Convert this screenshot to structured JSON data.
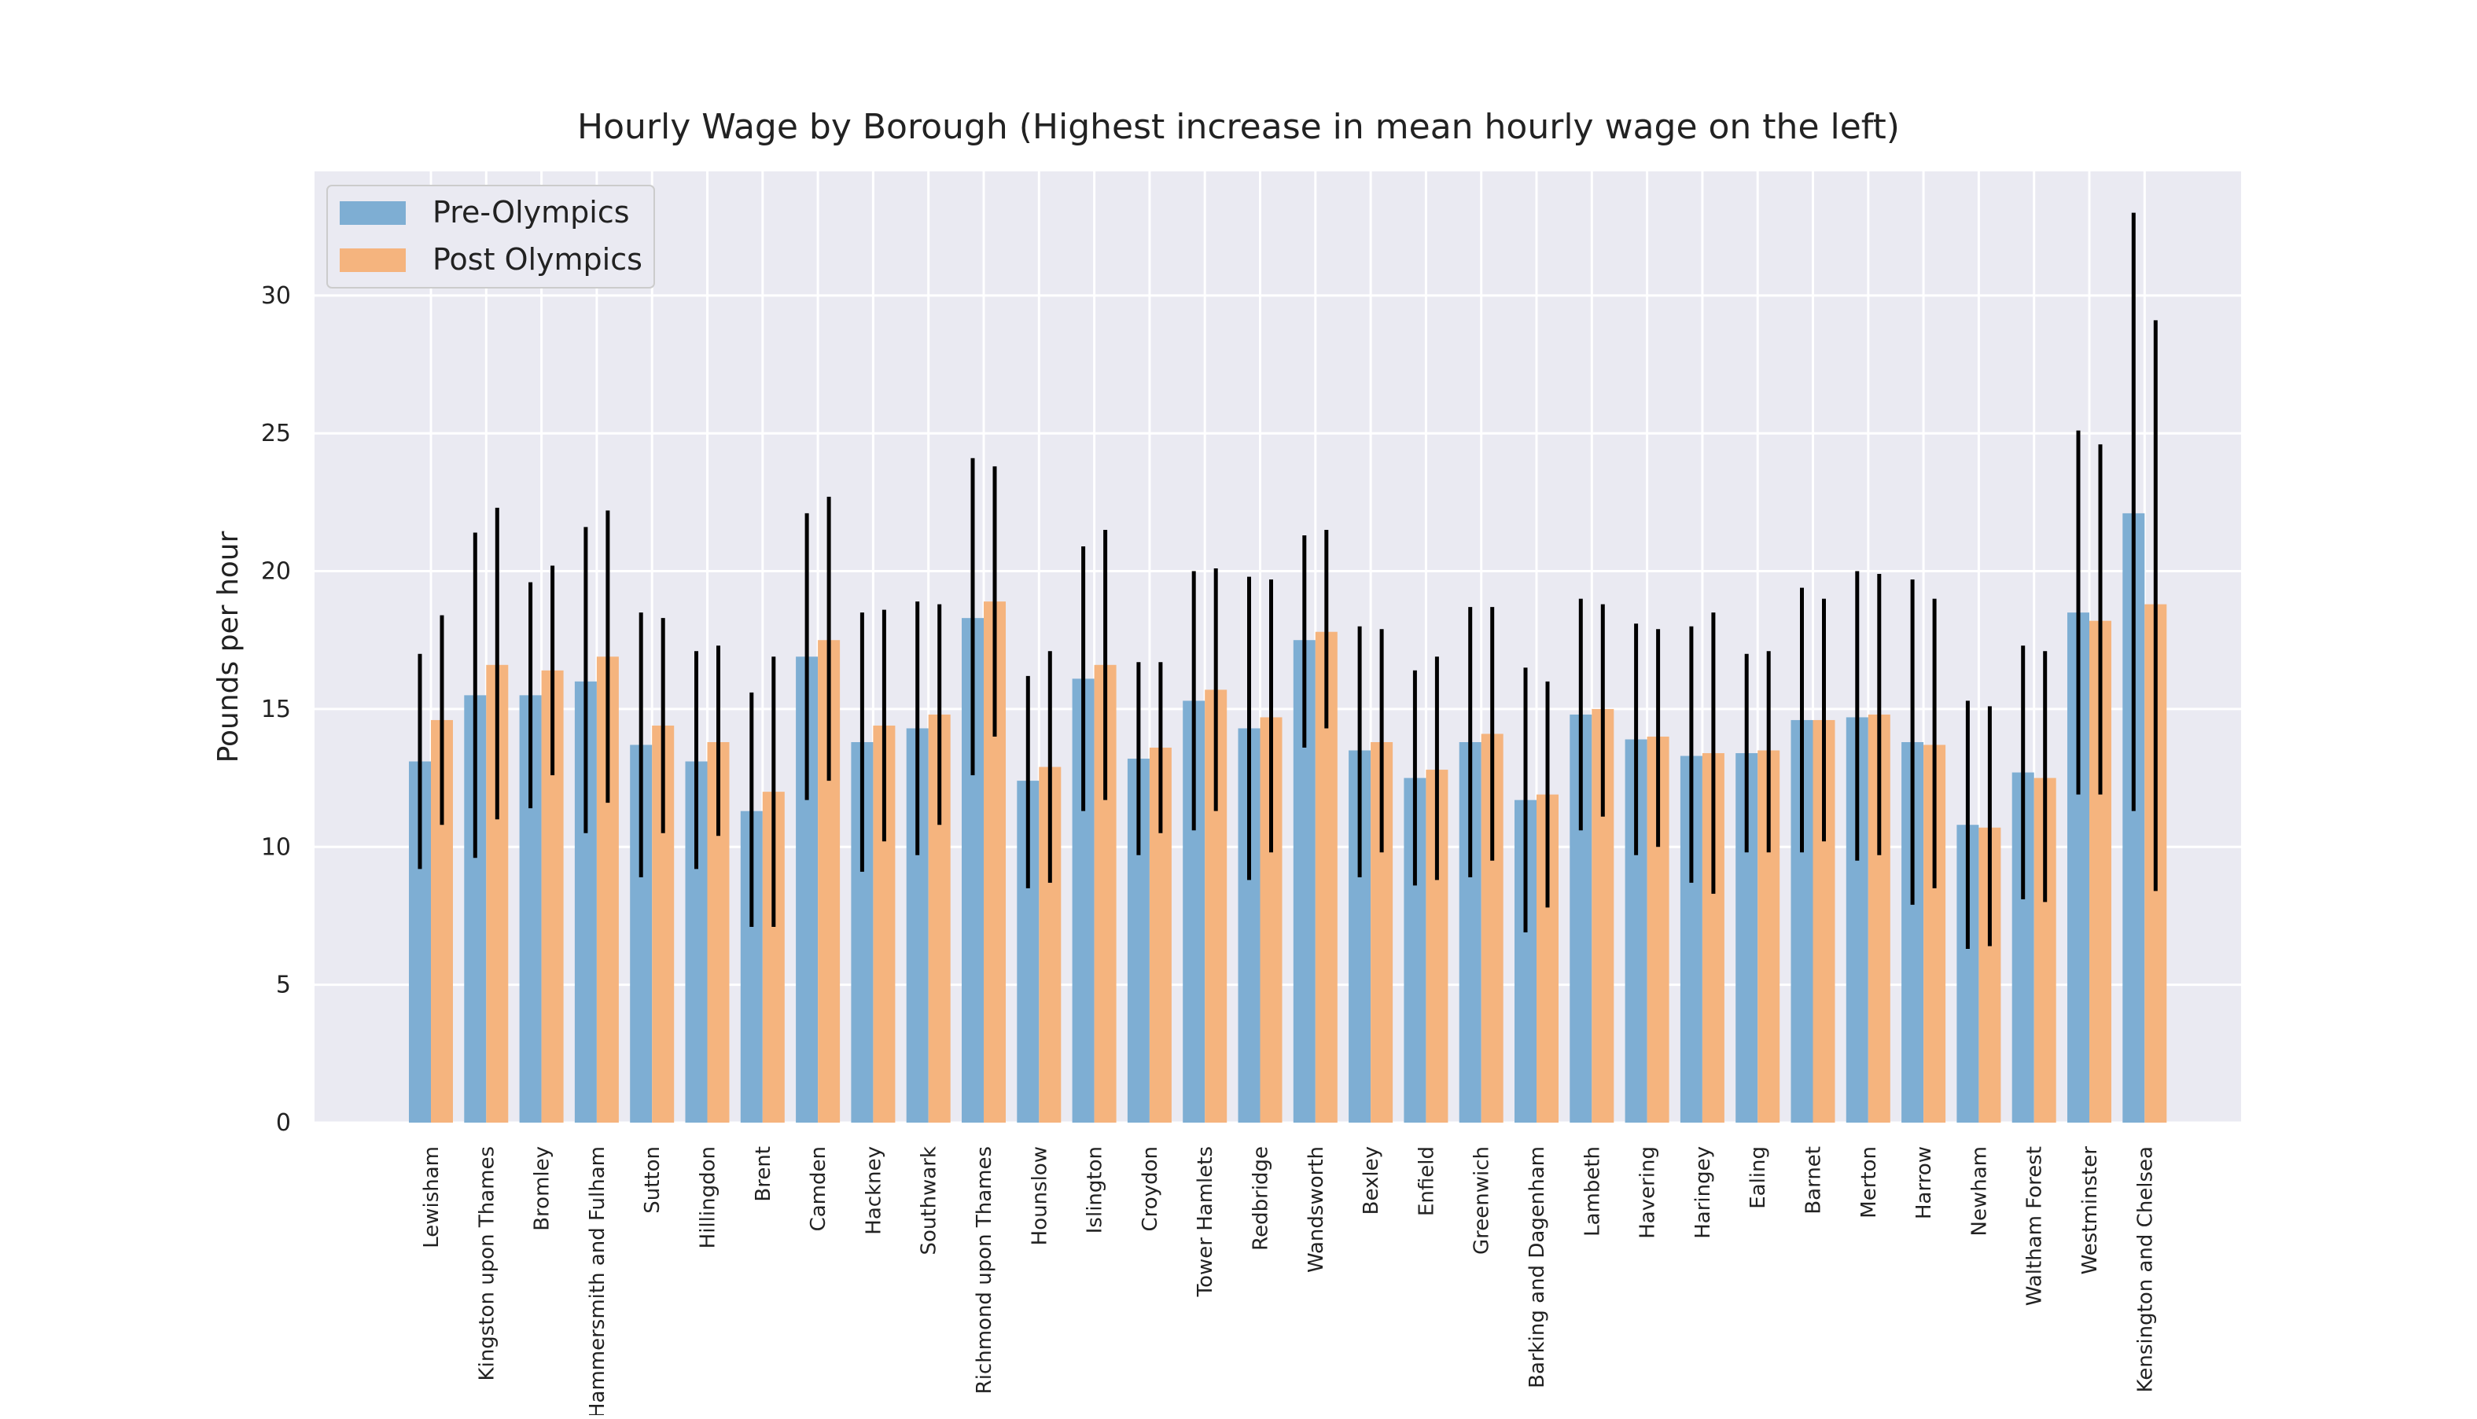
{
  "chart_data": {
    "type": "bar",
    "title": "Hourly Wage by Borough (Highest increase in mean hourly wage on the left)",
    "xlabel": "",
    "ylabel": "Pounds per hour",
    "ylim": [
      0,
      34.5
    ],
    "yticks": [
      0,
      5,
      10,
      15,
      20,
      25,
      30
    ],
    "grid": true,
    "legend_position": "top-left",
    "categories": [
      "Lewisham",
      "Kingston upon Thames",
      "Bromley",
      "Hammersmith and Fulham",
      "Sutton",
      "Hillingdon",
      "Brent",
      "Camden",
      "Hackney",
      "Southwark",
      "Richmond upon Thames",
      "Hounslow",
      "Islington",
      "Croydon",
      "Tower Hamlets",
      "Redbridge",
      "Wandsworth",
      "Bexley",
      "Enfield",
      "Greenwich",
      "Barking and Dagenham",
      "Lambeth",
      "Havering",
      "Haringey",
      "Ealing",
      "Barnet",
      "Merton",
      "Harrow",
      "Newham",
      "Waltham Forest",
      "Westminster",
      "Kensington and Chelsea"
    ],
    "series": [
      {
        "name": "Pre-Olympics",
        "color": "#7eaed3",
        "values": [
          13.1,
          15.5,
          15.5,
          16.0,
          13.7,
          13.1,
          11.3,
          16.9,
          13.8,
          14.3,
          18.3,
          12.4,
          16.1,
          13.2,
          15.3,
          14.3,
          17.5,
          13.5,
          12.5,
          13.8,
          11.7,
          14.8,
          13.9,
          13.3,
          13.4,
          14.6,
          14.7,
          13.8,
          10.8,
          12.7,
          18.5,
          22.1
        ],
        "error_low": [
          9.2,
          9.6,
          11.4,
          10.5,
          8.9,
          9.2,
          7.1,
          11.7,
          9.1,
          9.7,
          12.6,
          8.5,
          11.3,
          9.7,
          10.6,
          8.8,
          13.6,
          8.9,
          8.6,
          8.9,
          6.9,
          10.6,
          9.7,
          8.7,
          9.8,
          9.8,
          9.5,
          7.9,
          6.3,
          8.1,
          11.9,
          11.3
        ],
        "error_high": [
          17.0,
          21.4,
          19.6,
          21.6,
          18.5,
          17.1,
          15.6,
          22.1,
          18.5,
          18.9,
          24.1,
          16.2,
          20.9,
          16.7,
          20.0,
          19.8,
          21.3,
          18.0,
          16.4,
          18.7,
          16.5,
          19.0,
          18.1,
          18.0,
          17.0,
          19.4,
          20.0,
          19.7,
          15.3,
          17.3,
          25.1,
          33.0
        ]
      },
      {
        "name": "Post Olympics",
        "color": "#f5b47e",
        "values": [
          14.6,
          16.6,
          16.4,
          16.9,
          14.4,
          13.8,
          12.0,
          17.5,
          14.4,
          14.8,
          18.9,
          12.9,
          16.6,
          13.6,
          15.7,
          14.7,
          17.8,
          13.8,
          12.8,
          14.1,
          11.9,
          15.0,
          14.0,
          13.4,
          13.5,
          14.6,
          14.8,
          13.7,
          10.7,
          12.5,
          18.2,
          18.8
        ],
        "error_low": [
          10.8,
          11.0,
          12.6,
          11.6,
          10.5,
          10.4,
          7.1,
          12.4,
          10.2,
          10.8,
          14.0,
          8.7,
          11.7,
          10.5,
          11.3,
          9.8,
          14.3,
          9.8,
          8.8,
          9.5,
          7.8,
          11.1,
          10.0,
          8.3,
          9.8,
          10.2,
          9.7,
          8.5,
          6.4,
          8.0,
          11.9,
          8.4
        ],
        "error_high": [
          18.4,
          22.3,
          20.2,
          22.2,
          18.3,
          17.3,
          16.9,
          22.7,
          18.6,
          18.8,
          23.8,
          17.1,
          21.5,
          16.7,
          20.1,
          19.7,
          21.5,
          17.9,
          16.9,
          18.7,
          16.0,
          18.8,
          17.9,
          18.5,
          17.1,
          19.0,
          19.9,
          19.0,
          15.1,
          17.1,
          24.6,
          29.1
        ]
      }
    ]
  }
}
